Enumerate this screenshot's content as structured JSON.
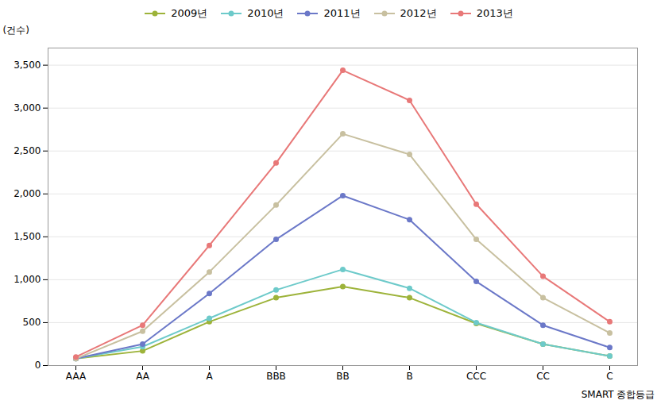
{
  "chart_data": {
    "type": "line",
    "categories": [
      "AAA",
      "AA",
      "A",
      "BBB",
      "BB",
      "B",
      "CCC",
      "CC",
      "C"
    ],
    "series": [
      {
        "name": "2009년",
        "color": "#9db33a",
        "values": [
          80,
          170,
          510,
          790,
          920,
          790,
          490,
          250,
          110
        ]
      },
      {
        "name": "2010년",
        "color": "#6dcaca",
        "values": [
          80,
          220,
          550,
          880,
          1120,
          900,
          500,
          250,
          110
        ]
      },
      {
        "name": "2011년",
        "color": "#6b78c8",
        "values": [
          80,
          250,
          840,
          1470,
          1980,
          1700,
          980,
          470,
          210
        ]
      },
      {
        "name": "2012년",
        "color": "#c8c0a0",
        "values": [
          80,
          400,
          1090,
          1870,
          2700,
          2460,
          1470,
          790,
          380
        ]
      },
      {
        "name": "2013년",
        "color": "#e87878",
        "values": [
          100,
          470,
          1400,
          2360,
          3440,
          3090,
          1880,
          1040,
          510
        ]
      }
    ],
    "x_label": "SMART 종합등급",
    "y_label": "(건수)",
    "ylim": [
      0,
      3700
    ],
    "yticks": [
      0,
      500,
      {
        "value": 1000,
        "label": "1,000"
      },
      {
        "value": 1500,
        "label": "1,500"
      },
      {
        "value": 2000,
        "label": "2,000"
      },
      {
        "value": 2500,
        "label": "2,500"
      },
      {
        "value": 3000,
        "label": "3,000"
      },
      {
        "value": 3500,
        "label": "3,500"
      }
    ],
    "grid": true,
    "legend": "top",
    "marker": "circle"
  }
}
